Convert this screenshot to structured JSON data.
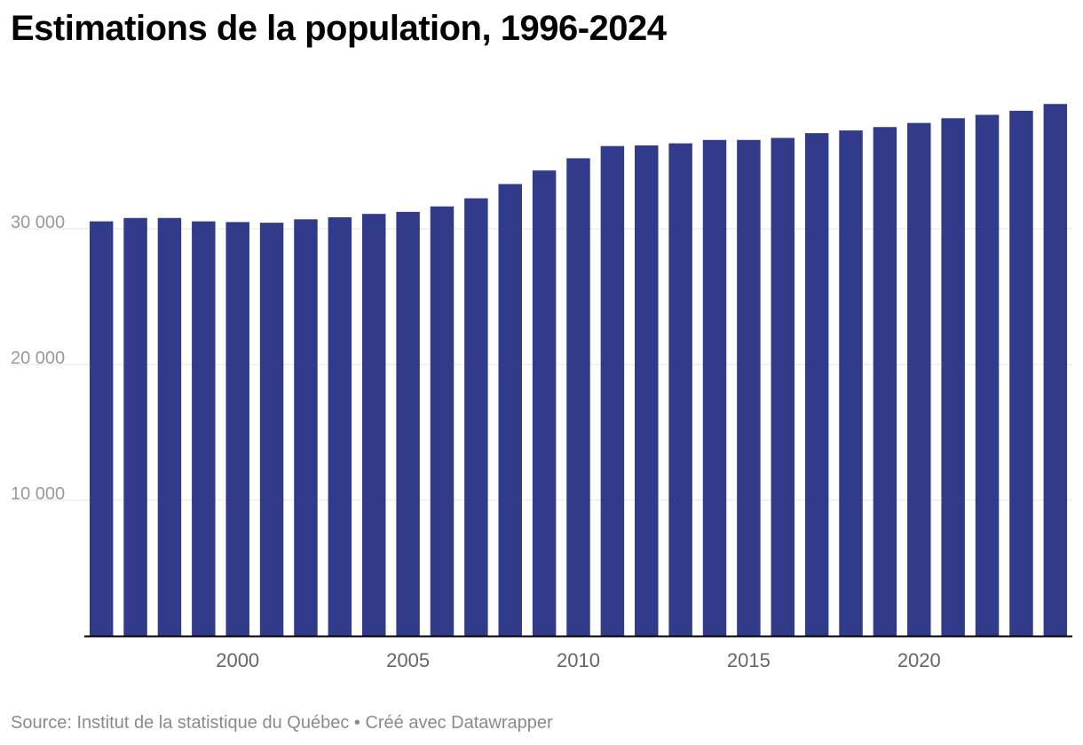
{
  "title": "Estimations de la population, 1996-2024",
  "source": "Source: Institut de la statistique du Québec • Créé avec Datawrapper",
  "colors": {
    "bar": "#313b8a",
    "grid": "#e4e4e4",
    "axis": "#000000"
  },
  "chart_data": {
    "type": "bar",
    "title": "Estimations de la population, 1996-2024",
    "xlabel": "",
    "ylabel": "",
    "ylim": [
      0,
      40000
    ],
    "grid": true,
    "y_ticks": [
      10000,
      20000,
      30000
    ],
    "y_tick_labels": [
      "10 000",
      "20 000",
      "30 000"
    ],
    "x_ticks": [
      2000,
      2005,
      2010,
      2015,
      2020
    ],
    "x_tick_labels": [
      "2000",
      "2005",
      "2010",
      "2015",
      "2020"
    ],
    "categories": [
      1996,
      1997,
      1998,
      1999,
      2000,
      2001,
      2002,
      2003,
      2004,
      2005,
      2006,
      2007,
      2008,
      2009,
      2010,
      2011,
      2012,
      2013,
      2014,
      2015,
      2016,
      2017,
      2018,
      2019,
      2020,
      2021,
      2022,
      2023,
      2024
    ],
    "values": [
      30550,
      30800,
      30800,
      30550,
      30500,
      30450,
      30700,
      30850,
      31100,
      31250,
      31650,
      32250,
      33300,
      34300,
      35200,
      36100,
      36150,
      36300,
      36550,
      36550,
      36700,
      37050,
      37250,
      37500,
      37800,
      38150,
      38400,
      38700,
      39200
    ]
  }
}
